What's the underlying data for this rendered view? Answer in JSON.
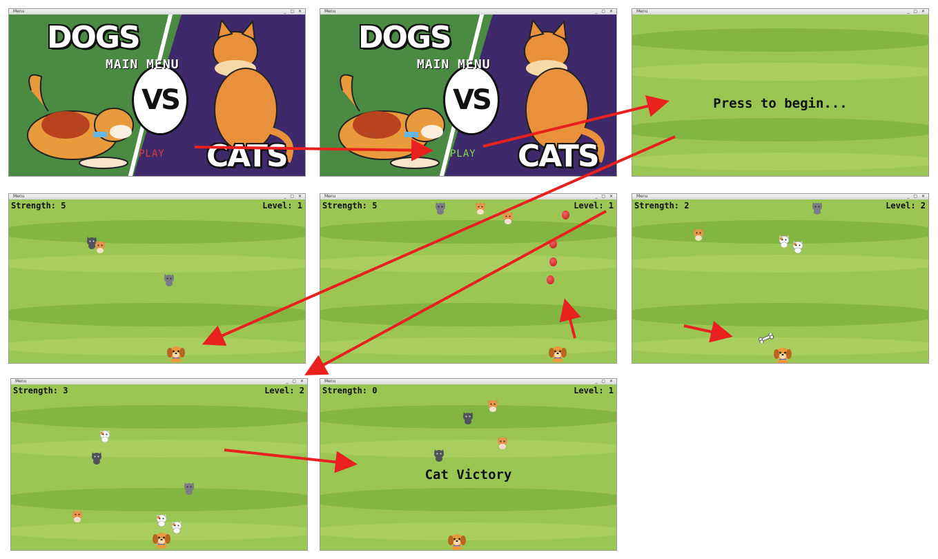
{
  "window_title": "Menu",
  "menu": {
    "dogs": "DOGS",
    "cats": "CATS",
    "vs": "VS",
    "main_menu": "MAIN MENU",
    "play": "PLAY",
    "play_color_idle": "#e03a3a",
    "play_color_hover": "#7bdc4b"
  },
  "intro": {
    "message": "Press to begin..."
  },
  "panels": [
    {
      "strength": "Strength: 5",
      "level": "Level: 1"
    },
    {
      "strength": "Strength: 5",
      "level": "Level: 1"
    },
    {
      "strength": "Strength: 2",
      "level": "Level: 2"
    },
    {
      "strength": "Strength: 3",
      "level": "Level: 2"
    },
    {
      "strength": "Strength: 0",
      "level": "Level: 1",
      "message": "Cat Victory"
    }
  ],
  "colors": {
    "grass": "#9cc653",
    "arrow": "#e8211f",
    "dog_fur": "#e89a3c",
    "cat_gray": "#6e6e78",
    "cat_orange": "#d9823a"
  },
  "icons": [
    "dog-sprite",
    "cat-sprite",
    "bone-icon",
    "ball-icon",
    "arrow"
  ]
}
